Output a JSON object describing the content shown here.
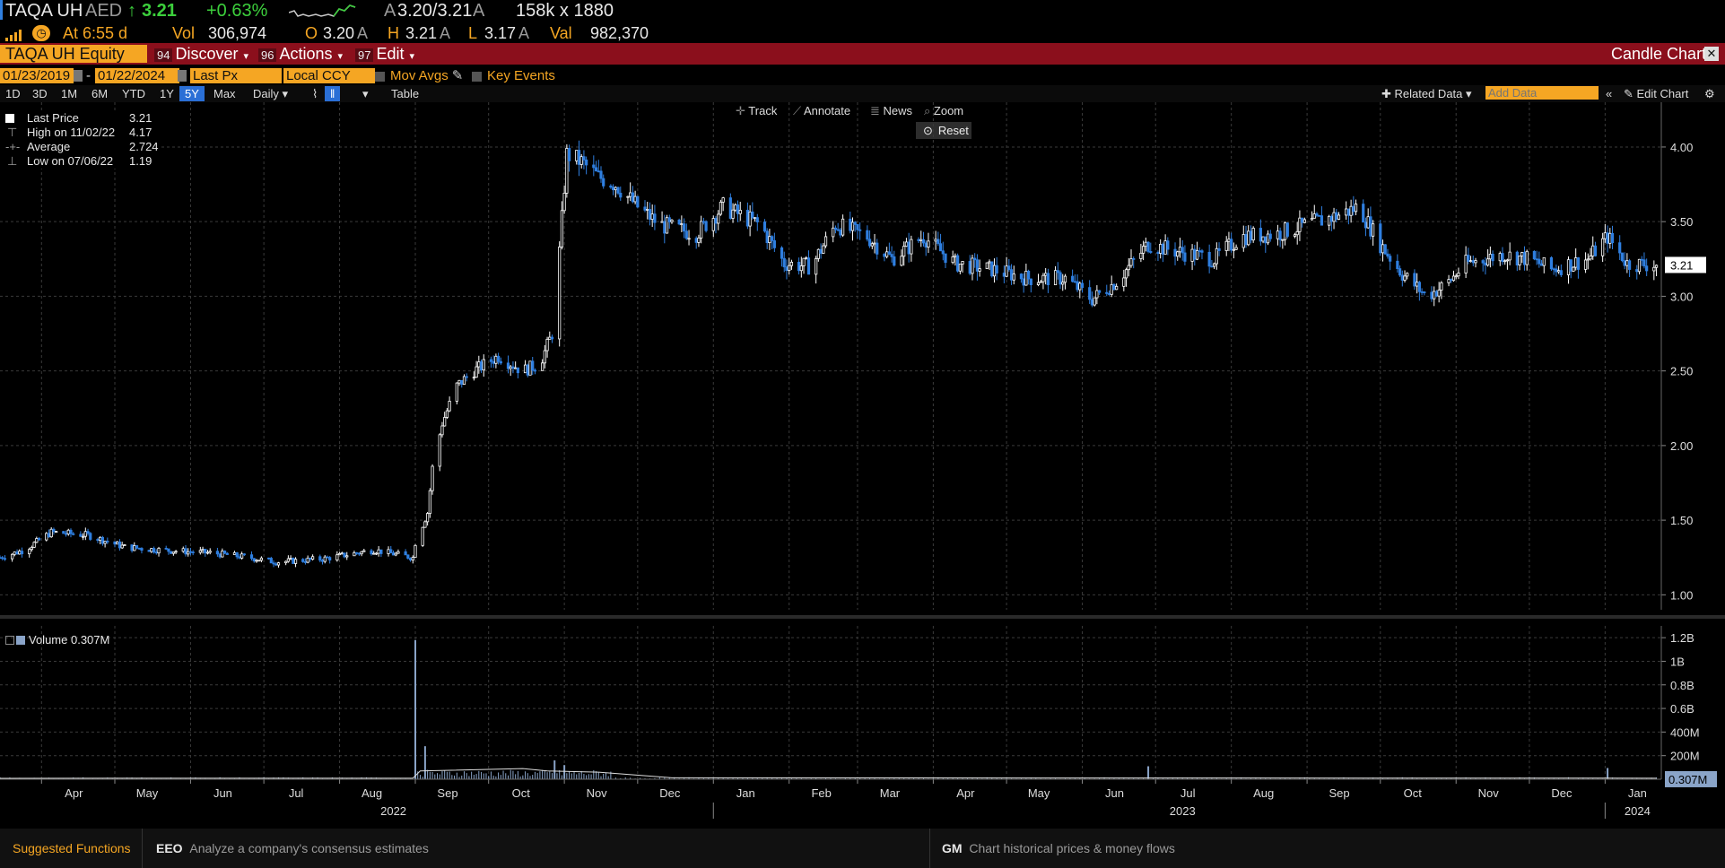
{
  "header": {
    "ticker": "TAQA UH",
    "currency": "AED",
    "last_arrow": "↑",
    "last": "3.21",
    "change": "+0.63%",
    "ask_label": "A",
    "bid_ask": "3.20/3.21",
    "bid_ask_suffix": "A",
    "size": "158k x 1880",
    "time_label": "At 6:55 d",
    "vol_label": "Vol",
    "vol": "306,974",
    "open_label": "O",
    "open": "3.20",
    "open_suffix": "A",
    "high_label": "H",
    "high": "3.21",
    "high_suffix": "A",
    "low_label": "L",
    "low": "3.17",
    "low_suffix": "A",
    "val_label": "Val",
    "val": "982,370"
  },
  "toolbar": {
    "security": "TAQA UH Equity",
    "discover_num": "94",
    "discover": "Discover",
    "actions_num": "96",
    "actions": "Actions",
    "edit_num": "97",
    "edit": "Edit",
    "chart_name": "Candle Chart"
  },
  "settings": {
    "start_date": "01/23/2019",
    "end_date": "01/22/2024",
    "field": "Last Px",
    "ccy": "Local CCY",
    "mov_avgs": "Mov Avgs",
    "key_events": "Key Events"
  },
  "periods": [
    "1D",
    "3D",
    "1M",
    "6M",
    "YTD",
    "1Y",
    "5Y",
    "Max"
  ],
  "selected_period": "5Y",
  "frequency": "Daily",
  "table_label": "Table",
  "right_tools": {
    "related": "Related Data",
    "add_data_placeholder": "Add Data",
    "edit_chart": "Edit Chart"
  },
  "chart_tools": {
    "track": "Track",
    "annotate": "Annotate",
    "news": "News",
    "zoom": "Zoom",
    "reset": "Reset"
  },
  "legend": {
    "last_price_label": "Last Price",
    "last_price": "3.21",
    "high_label": "High on 11/02/22",
    "high": "4.17",
    "average_label": "Average",
    "average": "2.724",
    "low_label": "Low on 07/06/22",
    "low": "1.19"
  },
  "volume_legend": "Volume 0.307M",
  "colors": {
    "up": "#ffffff",
    "down": "#2f7fe0",
    "accent": "#f5a623",
    "bar": "#8b0f1c"
  },
  "chart_data": [
    {
      "type": "candlestick",
      "title": "",
      "ylim": [
        0.9,
        4.3
      ],
      "y_ticks": [
        1.0,
        1.5,
        2.0,
        2.5,
        3.0,
        3.5,
        4.0
      ],
      "y_tick_labels": [
        "1.00",
        "1.50",
        "2.00",
        "2.50",
        "3.00",
        "3.50",
        "4.00"
      ],
      "last_value_label": "3.21",
      "x_ticks": [
        "Apr",
        "May",
        "Jun",
        "Jul",
        "Aug",
        "Sep",
        "Oct",
        "Nov",
        "Dec",
        "Jan",
        "Feb",
        "Mar",
        "Apr",
        "May",
        "Jun",
        "Jul",
        "Aug",
        "Sep",
        "Oct",
        "Nov",
        "Dec",
        "Jan"
      ],
      "year_labels": [
        "2022",
        "2023",
        "2024"
      ],
      "price_path": [
        [
          "2022-03-15",
          1.25
        ],
        [
          "2022-03-25",
          1.3
        ],
        [
          "2022-04-05",
          1.42
        ],
        [
          "2022-04-20",
          1.4
        ],
        [
          "2022-05-05",
          1.32
        ],
        [
          "2022-05-20",
          1.3
        ],
        [
          "2022-06-10",
          1.28
        ],
        [
          "2022-06-25",
          1.25
        ],
        [
          "2022-07-06",
          1.22
        ],
        [
          "2022-07-25",
          1.24
        ],
        [
          "2022-08-15",
          1.3
        ],
        [
          "2022-08-31",
          1.25
        ],
        [
          "2022-09-01",
          1.35
        ],
        [
          "2022-09-06",
          1.55
        ],
        [
          "2022-09-08",
          1.85
        ],
        [
          "2022-09-12",
          2.15
        ],
        [
          "2022-09-18",
          2.4
        ],
        [
          "2022-09-25",
          2.5
        ],
        [
          "2022-10-05",
          2.6
        ],
        [
          "2022-10-15",
          2.5
        ],
        [
          "2022-10-22",
          2.55
        ],
        [
          "2022-10-27",
          2.75
        ],
        [
          "2022-10-30",
          3.3
        ],
        [
          "2022-11-02",
          3.95
        ],
        [
          "2022-11-08",
          3.9
        ],
        [
          "2022-11-15",
          3.8
        ],
        [
          "2022-11-22",
          3.75
        ],
        [
          "2022-12-01",
          3.6
        ],
        [
          "2022-12-10",
          3.48
        ],
        [
          "2022-12-25",
          3.42
        ],
        [
          "2023-01-05",
          3.6
        ],
        [
          "2023-01-20",
          3.48
        ],
        [
          "2023-01-30",
          3.22
        ],
        [
          "2023-02-10",
          3.2
        ],
        [
          "2023-02-20",
          3.48
        ],
        [
          "2023-03-05",
          3.4
        ],
        [
          "2023-03-15",
          3.25
        ],
        [
          "2023-03-28",
          3.4
        ],
        [
          "2023-04-10",
          3.22
        ],
        [
          "2023-04-25",
          3.18
        ],
        [
          "2023-05-10",
          3.12
        ],
        [
          "2023-05-25",
          3.12
        ],
        [
          "2023-06-05",
          2.98
        ],
        [
          "2023-06-15",
          3.1
        ],
        [
          "2023-06-28",
          3.35
        ],
        [
          "2023-07-10",
          3.3
        ],
        [
          "2023-07-25",
          3.25
        ],
        [
          "2023-08-05",
          3.4
        ],
        [
          "2023-08-20",
          3.42
        ],
        [
          "2023-09-05",
          3.5
        ],
        [
          "2023-09-15",
          3.55
        ],
        [
          "2023-09-22",
          3.6
        ],
        [
          "2023-10-01",
          3.35
        ],
        [
          "2023-10-10",
          3.15
        ],
        [
          "2023-10-20",
          3.0
        ],
        [
          "2023-10-28",
          3.08
        ],
        [
          "2023-11-05",
          3.22
        ],
        [
          "2023-11-20",
          3.28
        ],
        [
          "2023-12-01",
          3.25
        ],
        [
          "2023-12-10",
          3.18
        ],
        [
          "2023-12-25",
          3.25
        ],
        [
          "2024-01-02",
          3.4
        ],
        [
          "2024-01-10",
          3.22
        ],
        [
          "2024-01-22",
          3.21
        ]
      ]
    },
    {
      "type": "bar",
      "title": "",
      "series_name": "Volume",
      "ylim": [
        0,
        1300000000
      ],
      "y_tick_labels": [
        "200M",
        "400M",
        "0.6B",
        "0.8B",
        "1B",
        "1.2B"
      ],
      "y_ticks": [
        200000000,
        400000000,
        600000000,
        800000000,
        1000000000,
        1200000000
      ],
      "last_value_label": "0.307M",
      "spikes": [
        [
          "2022-09-01",
          1180000000
        ],
        [
          "2022-09-05",
          280000000
        ],
        [
          "2022-10-28",
          160000000
        ],
        [
          "2022-11-01",
          120000000
        ],
        [
          "2023-06-28",
          110000000
        ],
        [
          "2024-01-02",
          95000000
        ]
      ]
    }
  ]
}
